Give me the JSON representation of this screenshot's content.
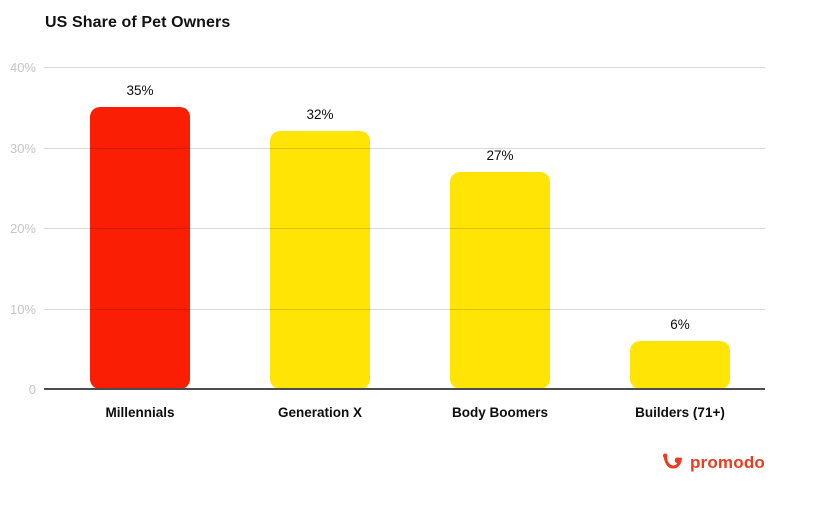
{
  "title": "US Share of Pet Owners",
  "chart_data": {
    "type": "bar",
    "title": "US Share of Pet Owners",
    "categories": [
      "Millennials",
      "Generation X",
      "Body Boomers",
      "Builders (71+)"
    ],
    "values": [
      35,
      32,
      27,
      6
    ],
    "value_labels": [
      "35%",
      "32%",
      "27%",
      "6%"
    ],
    "bar_colors": [
      "#fa1e05",
      "#ffe406",
      "#ffe406",
      "#ffe406"
    ],
    "xlabel": "",
    "ylabel": "",
    "ylim": [
      0,
      40
    ],
    "yticks": [
      {
        "value": 40,
        "label": "40%"
      },
      {
        "value": 30,
        "label": "30%"
      },
      {
        "value": 20,
        "label": "20%"
      },
      {
        "value": 10,
        "label": "10%"
      },
      {
        "value": 0,
        "label": "0"
      }
    ],
    "grid": "horizontal",
    "legend": "none"
  },
  "colors": {
    "background": "#ffffff",
    "accent_red": "#fa1e05",
    "accent_yellow": "#ffe406",
    "axis": "#4d4d4d",
    "tick_label": "#c5c5c5",
    "text": "#0d0d0d",
    "logo": "#e93c23"
  },
  "branding": {
    "logo_text": "promodo",
    "logo_icon": "promodo-bull-icon"
  }
}
